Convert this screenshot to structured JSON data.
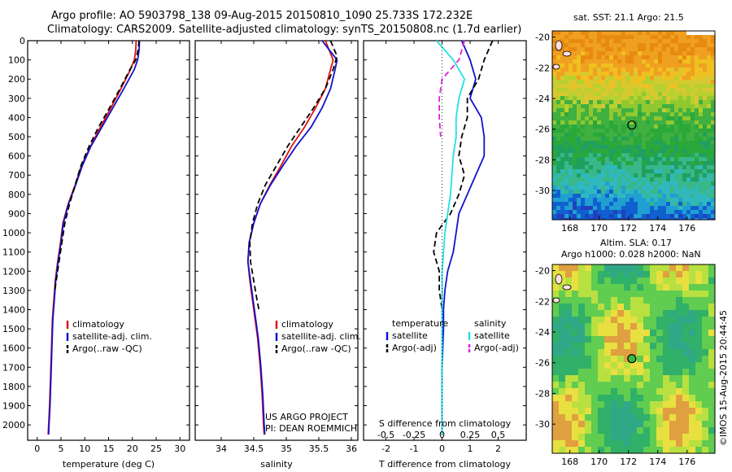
{
  "header": {
    "title_line1": "Argo profile: AO 5903798_138 09-Aug-2015 20150810_1090 25.733S 172.232E",
    "title_line2": "Climatology: CARS2009. Satellite-adjusted climatology: synTS_20150808.nc (1.7d earlier)"
  },
  "project": {
    "line1": "US ARGO PROJECT",
    "line2": "PI: DEAN ROEMMICH"
  },
  "credit": "©IMOS 15-Aug-2015 20:44:45",
  "colors": {
    "climatology": "#dd1111",
    "satellite": "#1111cc",
    "argo": "#000000",
    "salinity_satellite": "#22e0e0",
    "salinity_argo": "#dd22dd"
  },
  "chart_data": [
    {
      "type": "line",
      "id": "temperature",
      "xlabel": "temperature (deg C)",
      "ylabel": "",
      "xlim": [
        -2,
        32
      ],
      "ylim": [
        2080,
        0
      ],
      "xticks": [
        0,
        5,
        10,
        15,
        20,
        25,
        30
      ],
      "yticks": [
        0,
        100,
        200,
        300,
        400,
        500,
        600,
        700,
        800,
        900,
        1000,
        1100,
        1200,
        1300,
        1400,
        1500,
        1600,
        1700,
        1800,
        1900,
        2000
      ],
      "legend": [
        "climatology",
        "satellite-adj. clim.",
        "Argo(..raw -QC)"
      ],
      "legend_position": "lower-right",
      "series": [
        {
          "name": "climatology",
          "style": "solid",
          "color": "#dd1111",
          "x": [
            20.8,
            20.7,
            20.4,
            19.6,
            17.6,
            15.5,
            13.3,
            11.2,
            9.3,
            8.0,
            6.5,
            5.4,
            4.9,
            4.3,
            3.8,
            3.5,
            3.2,
            3.0,
            2.8,
            2.6,
            2.4,
            2.3
          ],
          "y": [
            0,
            50,
            100,
            150,
            250,
            350,
            450,
            550,
            650,
            750,
            850,
            950,
            1050,
            1150,
            1250,
            1350,
            1450,
            1600,
            1750,
            1900,
            2000,
            2050
          ]
        },
        {
          "name": "satellite-adj. clim.",
          "style": "solid",
          "color": "#1111cc",
          "x": [
            21.5,
            21.4,
            21.1,
            20.4,
            18.2,
            15.9,
            13.6,
            11.3,
            9.5,
            8.1,
            6.6,
            5.5,
            5.0,
            4.4,
            3.9,
            3.6,
            3.3,
            3.1,
            2.9,
            2.7,
            2.5,
            2.4
          ],
          "y": [
            0,
            50,
            100,
            150,
            250,
            350,
            450,
            550,
            650,
            750,
            850,
            950,
            1050,
            1150,
            1250,
            1350,
            1450,
            1600,
            1750,
            1900,
            2000,
            2050
          ]
        },
        {
          "name": "Argo(..raw -QC)",
          "style": "dashed",
          "color": "#000000",
          "x": [
            21.4,
            21.2,
            20.7,
            19.5,
            17.4,
            15.2,
            12.9,
            10.9,
            9.2,
            8.0,
            6.8,
            5.8,
            5.2,
            4.6,
            4.0,
            3.7
          ],
          "y": [
            0,
            50,
            100,
            150,
            250,
            350,
            450,
            550,
            650,
            750,
            850,
            950,
            1050,
            1150,
            1250,
            1300
          ]
        }
      ]
    },
    {
      "type": "line",
      "id": "salinity",
      "xlabel": "salinity",
      "ylabel": "",
      "xlim": [
        33.6,
        36.1
      ],
      "ylim": [
        2080,
        0
      ],
      "xticks": [
        34,
        34.5,
        35,
        35.5,
        36
      ],
      "legend": [
        "climatology",
        "satellite-adj. clim.",
        "Argo(..raw -QC)"
      ],
      "legend_position": "lower-right",
      "series": [
        {
          "name": "climatology",
          "style": "solid",
          "color": "#dd1111",
          "x": [
            35.6,
            35.72,
            35.68,
            35.6,
            35.45,
            35.28,
            35.08,
            34.92,
            34.75,
            34.6,
            34.5,
            34.43,
            34.41,
            34.44,
            34.48,
            34.52,
            34.56,
            34.6,
            34.63,
            34.65,
            34.66
          ],
          "y": [
            0,
            100,
            150,
            250,
            350,
            450,
            550,
            650,
            750,
            850,
            950,
            1050,
            1150,
            1250,
            1350,
            1450,
            1550,
            1700,
            1850,
            2000,
            2050
          ]
        },
        {
          "name": "satellite-adj. clim.",
          "style": "solid",
          "color": "#1111cc",
          "x": [
            35.55,
            35.78,
            35.75,
            35.68,
            35.55,
            35.38,
            35.15,
            34.95,
            34.76,
            34.6,
            34.5,
            34.43,
            34.41,
            34.45,
            34.49,
            34.53,
            34.57,
            34.61,
            34.64,
            34.66,
            34.67
          ],
          "y": [
            0,
            100,
            150,
            250,
            350,
            450,
            550,
            650,
            750,
            850,
            950,
            1050,
            1150,
            1250,
            1350,
            1450,
            1550,
            1700,
            1850,
            2000,
            2050
          ]
        },
        {
          "name": "Argo(..raw -QC)",
          "style": "dashed",
          "color": "#000000",
          "x": [
            35.68,
            35.78,
            35.72,
            35.6,
            35.42,
            35.22,
            35.02,
            34.85,
            34.68,
            34.56,
            34.48,
            34.44,
            34.45,
            34.5,
            34.55,
            34.58
          ],
          "y": [
            0,
            80,
            150,
            250,
            350,
            450,
            550,
            650,
            750,
            850,
            950,
            1050,
            1150,
            1250,
            1350,
            1400
          ]
        }
      ]
    },
    {
      "type": "line",
      "id": "difference",
      "xlabel": "T difference from climatology",
      "xlabel2": "S difference from climatology",
      "xlim": [
        -2.8,
        3.0
      ],
      "ylim": [
        2080,
        0
      ],
      "xticks": [
        -2,
        -1,
        0,
        1,
        2
      ],
      "xticks2": [
        {
          "value": -0.5,
          "label": "-0.5",
          "at": -2
        },
        {
          "value": -0.25,
          "label": "-0.25",
          "at": -1
        },
        {
          "value": 0,
          "label": "0",
          "at": 0
        },
        {
          "value": 0.25,
          "label": "0.25",
          "at": 1
        },
        {
          "value": 0.5,
          "label": "0.5",
          "at": 2
        }
      ],
      "legend_temperature_title": "temperature",
      "legend_salinity_title": "salinity",
      "legend": [
        "satellite",
        "Argo(-adj)",
        "satellite",
        "Argo(-adj)"
      ],
      "legend_position": "lower-right",
      "series": [
        {
          "name": "satellite",
          "group": "temperature",
          "style": "solid",
          "color": "#1111cc",
          "x": [
            0.7,
            1.0,
            1.2,
            1.0,
            1.4,
            1.5,
            1.5,
            1.2,
            0.9,
            0.6,
            0.5,
            0.4,
            0.2,
            0.1,
            0.05,
            0.05,
            0.0,
            0.0,
            0.0
          ],
          "y": [
            0,
            100,
            200,
            300,
            400,
            500,
            600,
            700,
            800,
            900,
            1000,
            1100,
            1200,
            1300,
            1400,
            1500,
            1700,
            1900,
            2050
          ]
        },
        {
          "name": "Argo(-adj)",
          "group": "temperature",
          "style": "dashed",
          "color": "#000000",
          "x": [
            1.8,
            1.5,
            1.3,
            0.9,
            0.9,
            0.7,
            0.6,
            0.8,
            0.6,
            0.3,
            -0.2,
            -0.3,
            -0.1,
            -0.1,
            0.0
          ],
          "y": [
            0,
            100,
            200,
            300,
            400,
            500,
            600,
            700,
            800,
            900,
            1000,
            1100,
            1200,
            1300,
            1400
          ]
        },
        {
          "name": "satellite",
          "group": "salinity",
          "style": "solid",
          "color": "#22e0e0",
          "x": [
            -0.2,
            0.4,
            0.8,
            0.6,
            0.5,
            0.5,
            0.4,
            0.35,
            0.3,
            0.2,
            0.1,
            0.05,
            0.0,
            0.0,
            0.0,
            0.0,
            0.0,
            0.0
          ],
          "y": [
            0,
            100,
            200,
            300,
            400,
            500,
            600,
            700,
            800,
            900,
            1000,
            1100,
            1200,
            1400,
            1600,
            1800,
            1950,
            2050
          ]
        },
        {
          "name": "Argo(-adj)",
          "group": "salinity",
          "style": "dashed",
          "color": "#dd22dd",
          "x": [
            0.8,
            0.6,
            0.0,
            -0.1,
            -0.1,
            -0.05
          ],
          "y": [
            0,
            100,
            200,
            300,
            400,
            500
          ]
        }
      ]
    },
    {
      "type": "heatmap",
      "id": "sst_map",
      "title": "sat. SST: 21.1  Argo: 21.5",
      "xticks": [
        168,
        170,
        172,
        174,
        176
      ],
      "yticks": [
        -20,
        -22,
        -24,
        -26,
        -28,
        -30
      ],
      "xlim": [
        166.8,
        177.9
      ],
      "ylim": [
        -31.9,
        -19.6
      ],
      "marker": {
        "lon": 172.232,
        "lat": -25.733
      }
    },
    {
      "type": "heatmap",
      "id": "sla_map",
      "title_line1": "Altim. SLA: 0.17",
      "title_line2": "Argo h1000: 0.028 h2000: NaN",
      "xticks": [
        168,
        170,
        172,
        174,
        176
      ],
      "yticks": [
        -20,
        -22,
        -24,
        -26,
        -28,
        -30
      ],
      "xlim": [
        166.8,
        177.9
      ],
      "ylim": [
        -31.9,
        -19.6
      ],
      "marker": {
        "lon": 172.232,
        "lat": -25.733
      }
    }
  ]
}
